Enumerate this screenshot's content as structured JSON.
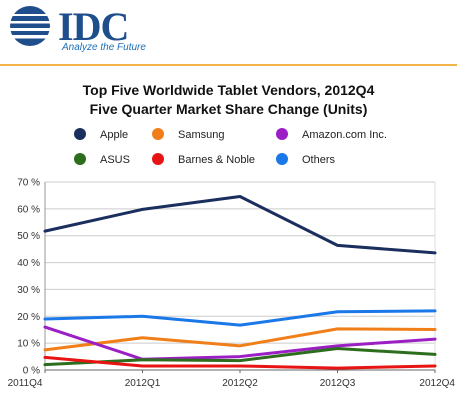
{
  "brand": {
    "logo": "IDC",
    "tagline": "Analyze the Future"
  },
  "colors": {
    "brand_blue": "#1f4e8c",
    "rule": "#f0b44a"
  },
  "chart_data": {
    "type": "line",
    "title": "Top Five Worldwide Tablet Vendors, 2012Q4",
    "subtitle": "Five Quarter Market Share Change (Units)",
    "xlabel": "",
    "ylabel": "",
    "categories": [
      "2011Q4",
      "2012Q1",
      "2012Q2",
      "2012Q3",
      "2012Q4"
    ],
    "ylim": [
      0,
      70
    ],
    "yticks": [
      0,
      10,
      20,
      30,
      40,
      50,
      60,
      70
    ],
    "ytick_labels": [
      "0 %",
      "10 %",
      "20 %",
      "30 %",
      "40 %",
      "50 %",
      "60 %",
      "70 %"
    ],
    "grid": "horizontal",
    "legend_position": "top",
    "series": [
      {
        "name": "Apple",
        "color": "#1a2f5e",
        "values": [
          51.7,
          59.8,
          64.6,
          46.4,
          43.6
        ]
      },
      {
        "name": "Samsung",
        "color": "#f07f1a",
        "values": [
          7.5,
          12,
          9,
          15.3,
          15.1
        ]
      },
      {
        "name": "Amazon.com Inc.",
        "color": "#9b1fc4",
        "values": [
          16,
          4,
          5,
          9,
          11.5
        ]
      },
      {
        "name": "ASUS",
        "color": "#2d6e1e",
        "values": [
          2,
          3.8,
          3.5,
          8,
          5.8
        ]
      },
      {
        "name": "Barnes & Noble",
        "color": "#e81313",
        "values": [
          4.7,
          1.5,
          1.5,
          0.7,
          1.5
        ]
      },
      {
        "name": "Others",
        "color": "#1a78e8",
        "values": [
          19,
          20,
          16.7,
          21.7,
          22
        ]
      }
    ]
  }
}
